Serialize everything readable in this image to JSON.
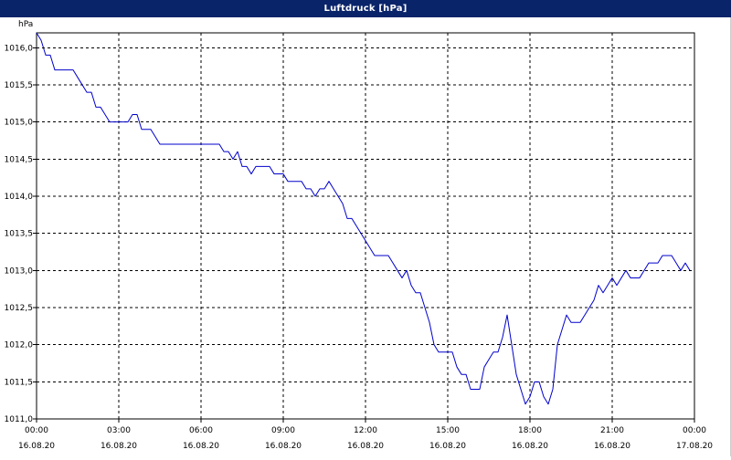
{
  "window": {
    "title": "Luftdruck [hPa]"
  },
  "chart_data": {
    "type": "line",
    "title": "Luftdruck [hPa]",
    "ylabel": "hPa",
    "xlabel": "",
    "ylim": [
      1011.0,
      1016.2
    ],
    "x_range": [
      "2020-08-16 00:00",
      "2020-08-17 00:00"
    ],
    "grid": true,
    "grid_style": "dashed",
    "y_ticks": [
      "1011,0",
      "1011,5",
      "1012,0",
      "1012,5",
      "1013,0",
      "1013,5",
      "1014,0",
      "1014,5",
      "1015,0",
      "1015,5",
      "1016,0"
    ],
    "x_ticks": [
      {
        "time": "00:00",
        "date": "16.08.20"
      },
      {
        "time": "03:00",
        "date": "16.08.20"
      },
      {
        "time": "06:00",
        "date": "16.08.20"
      },
      {
        "time": "09:00",
        "date": "16.08.20"
      },
      {
        "time": "12:00",
        "date": "16.08.20"
      },
      {
        "time": "15:00",
        "date": "16.08.20"
      },
      {
        "time": "18:00",
        "date": "16.08.20"
      },
      {
        "time": "21:00",
        "date": "16.08.20"
      },
      {
        "time": "00:00",
        "date": "17.08.20"
      }
    ],
    "series": [
      {
        "color": "#0000cc",
        "points": [
          [
            "2020-08-16 00:00",
            1016.2
          ],
          [
            "2020-08-16 00:10",
            1016.1
          ],
          [
            "2020-08-16 00:20",
            1015.9
          ],
          [
            "2020-08-16 00:30",
            1015.9
          ],
          [
            "2020-08-16 00:40",
            1015.7
          ],
          [
            "2020-08-16 01:00",
            1015.7
          ],
          [
            "2020-08-16 01:20",
            1015.7
          ],
          [
            "2020-08-16 01:30",
            1015.6
          ],
          [
            "2020-08-16 01:40",
            1015.5
          ],
          [
            "2020-08-16 01:50",
            1015.4
          ],
          [
            "2020-08-16 02:00",
            1015.4
          ],
          [
            "2020-08-16 02:10",
            1015.2
          ],
          [
            "2020-08-16 02:20",
            1015.2
          ],
          [
            "2020-08-16 02:30",
            1015.1
          ],
          [
            "2020-08-16 02:40",
            1015.0
          ],
          [
            "2020-08-16 03:00",
            1015.0
          ],
          [
            "2020-08-16 03:20",
            1015.0
          ],
          [
            "2020-08-16 03:30",
            1015.1
          ],
          [
            "2020-08-16 03:40",
            1015.1
          ],
          [
            "2020-08-16 03:50",
            1014.9
          ],
          [
            "2020-08-16 04:00",
            1014.9
          ],
          [
            "2020-08-16 04:10",
            1014.9
          ],
          [
            "2020-08-16 04:20",
            1014.8
          ],
          [
            "2020-08-16 04:30",
            1014.7
          ],
          [
            "2020-08-16 05:00",
            1014.7
          ],
          [
            "2020-08-16 06:00",
            1014.7
          ],
          [
            "2020-08-16 06:40",
            1014.7
          ],
          [
            "2020-08-16 06:50",
            1014.6
          ],
          [
            "2020-08-16 07:00",
            1014.6
          ],
          [
            "2020-08-16 07:10",
            1014.5
          ],
          [
            "2020-08-16 07:20",
            1014.6
          ],
          [
            "2020-08-16 07:30",
            1014.4
          ],
          [
            "2020-08-16 07:40",
            1014.4
          ],
          [
            "2020-08-16 07:50",
            1014.3
          ],
          [
            "2020-08-16 08:00",
            1014.4
          ],
          [
            "2020-08-16 08:20",
            1014.4
          ],
          [
            "2020-08-16 08:30",
            1014.4
          ],
          [
            "2020-08-16 08:40",
            1014.3
          ],
          [
            "2020-08-16 09:00",
            1014.3
          ],
          [
            "2020-08-16 09:10",
            1014.2
          ],
          [
            "2020-08-16 09:30",
            1014.2
          ],
          [
            "2020-08-16 09:40",
            1014.2
          ],
          [
            "2020-08-16 09:50",
            1014.1
          ],
          [
            "2020-08-16 10:00",
            1014.1
          ],
          [
            "2020-08-16 10:10",
            1014.0
          ],
          [
            "2020-08-16 10:20",
            1014.1
          ],
          [
            "2020-08-16 10:30",
            1014.1
          ],
          [
            "2020-08-16 10:40",
            1014.2
          ],
          [
            "2020-08-16 10:50",
            1014.1
          ],
          [
            "2020-08-16 11:00",
            1014.0
          ],
          [
            "2020-08-16 11:10",
            1013.9
          ],
          [
            "2020-08-16 11:20",
            1013.7
          ],
          [
            "2020-08-16 11:30",
            1013.7
          ],
          [
            "2020-08-16 11:40",
            1013.6
          ],
          [
            "2020-08-16 11:50",
            1013.5
          ],
          [
            "2020-08-16 12:00",
            1013.4
          ],
          [
            "2020-08-16 12:10",
            1013.3
          ],
          [
            "2020-08-16 12:20",
            1013.2
          ],
          [
            "2020-08-16 12:40",
            1013.2
          ],
          [
            "2020-08-16 12:50",
            1013.2
          ],
          [
            "2020-08-16 13:00",
            1013.1
          ],
          [
            "2020-08-16 13:10",
            1013.0
          ],
          [
            "2020-08-16 13:20",
            1012.9
          ],
          [
            "2020-08-16 13:30",
            1013.0
          ],
          [
            "2020-08-16 13:40",
            1012.8
          ],
          [
            "2020-08-16 13:50",
            1012.7
          ],
          [
            "2020-08-16 14:00",
            1012.7
          ],
          [
            "2020-08-16 14:10",
            1012.5
          ],
          [
            "2020-08-16 14:20",
            1012.3
          ],
          [
            "2020-08-16 14:30",
            1012.0
          ],
          [
            "2020-08-16 14:40",
            1011.9
          ],
          [
            "2020-08-16 15:00",
            1011.9
          ],
          [
            "2020-08-16 15:10",
            1011.9
          ],
          [
            "2020-08-16 15:20",
            1011.7
          ],
          [
            "2020-08-16 15:30",
            1011.6
          ],
          [
            "2020-08-16 15:40",
            1011.6
          ],
          [
            "2020-08-16 15:50",
            1011.4
          ],
          [
            "2020-08-16 16:00",
            1011.4
          ],
          [
            "2020-08-16 16:10",
            1011.4
          ],
          [
            "2020-08-16 16:20",
            1011.7
          ],
          [
            "2020-08-16 16:30",
            1011.8
          ],
          [
            "2020-08-16 16:40",
            1011.9
          ],
          [
            "2020-08-16 16:50",
            1011.9
          ],
          [
            "2020-08-16 17:00",
            1012.1
          ],
          [
            "2020-08-16 17:10",
            1012.4
          ],
          [
            "2020-08-16 17:20",
            1012.0
          ],
          [
            "2020-08-16 17:30",
            1011.6
          ],
          [
            "2020-08-16 17:40",
            1011.4
          ],
          [
            "2020-08-16 17:50",
            1011.2
          ],
          [
            "2020-08-16 18:00",
            1011.3
          ],
          [
            "2020-08-16 18:10",
            1011.5
          ],
          [
            "2020-08-16 18:20",
            1011.5
          ],
          [
            "2020-08-16 18:30",
            1011.3
          ],
          [
            "2020-08-16 18:40",
            1011.2
          ],
          [
            "2020-08-16 18:50",
            1011.4
          ],
          [
            "2020-08-16 19:00",
            1012.0
          ],
          [
            "2020-08-16 19:10",
            1012.2
          ],
          [
            "2020-08-16 19:20",
            1012.4
          ],
          [
            "2020-08-16 19:30",
            1012.3
          ],
          [
            "2020-08-16 19:40",
            1012.3
          ],
          [
            "2020-08-16 19:50",
            1012.3
          ],
          [
            "2020-08-16 20:00",
            1012.4
          ],
          [
            "2020-08-16 20:10",
            1012.5
          ],
          [
            "2020-08-16 20:20",
            1012.6
          ],
          [
            "2020-08-16 20:30",
            1012.8
          ],
          [
            "2020-08-16 20:40",
            1012.7
          ],
          [
            "2020-08-16 20:50",
            1012.8
          ],
          [
            "2020-08-16 21:00",
            1012.9
          ],
          [
            "2020-08-16 21:10",
            1012.8
          ],
          [
            "2020-08-16 21:20",
            1012.9
          ],
          [
            "2020-08-16 21:30",
            1013.0
          ],
          [
            "2020-08-16 21:40",
            1012.9
          ],
          [
            "2020-08-16 22:00",
            1012.9
          ],
          [
            "2020-08-16 22:20",
            1013.1
          ],
          [
            "2020-08-16 22:40",
            1013.1
          ],
          [
            "2020-08-16 22:50",
            1013.2
          ],
          [
            "2020-08-16 23:10",
            1013.2
          ],
          [
            "2020-08-16 23:20",
            1013.1
          ],
          [
            "2020-08-16 23:30",
            1013.0
          ],
          [
            "2020-08-16 23:40",
            1013.1
          ],
          [
            "2020-08-16 23:50",
            1013.0
          ]
        ]
      }
    ]
  }
}
